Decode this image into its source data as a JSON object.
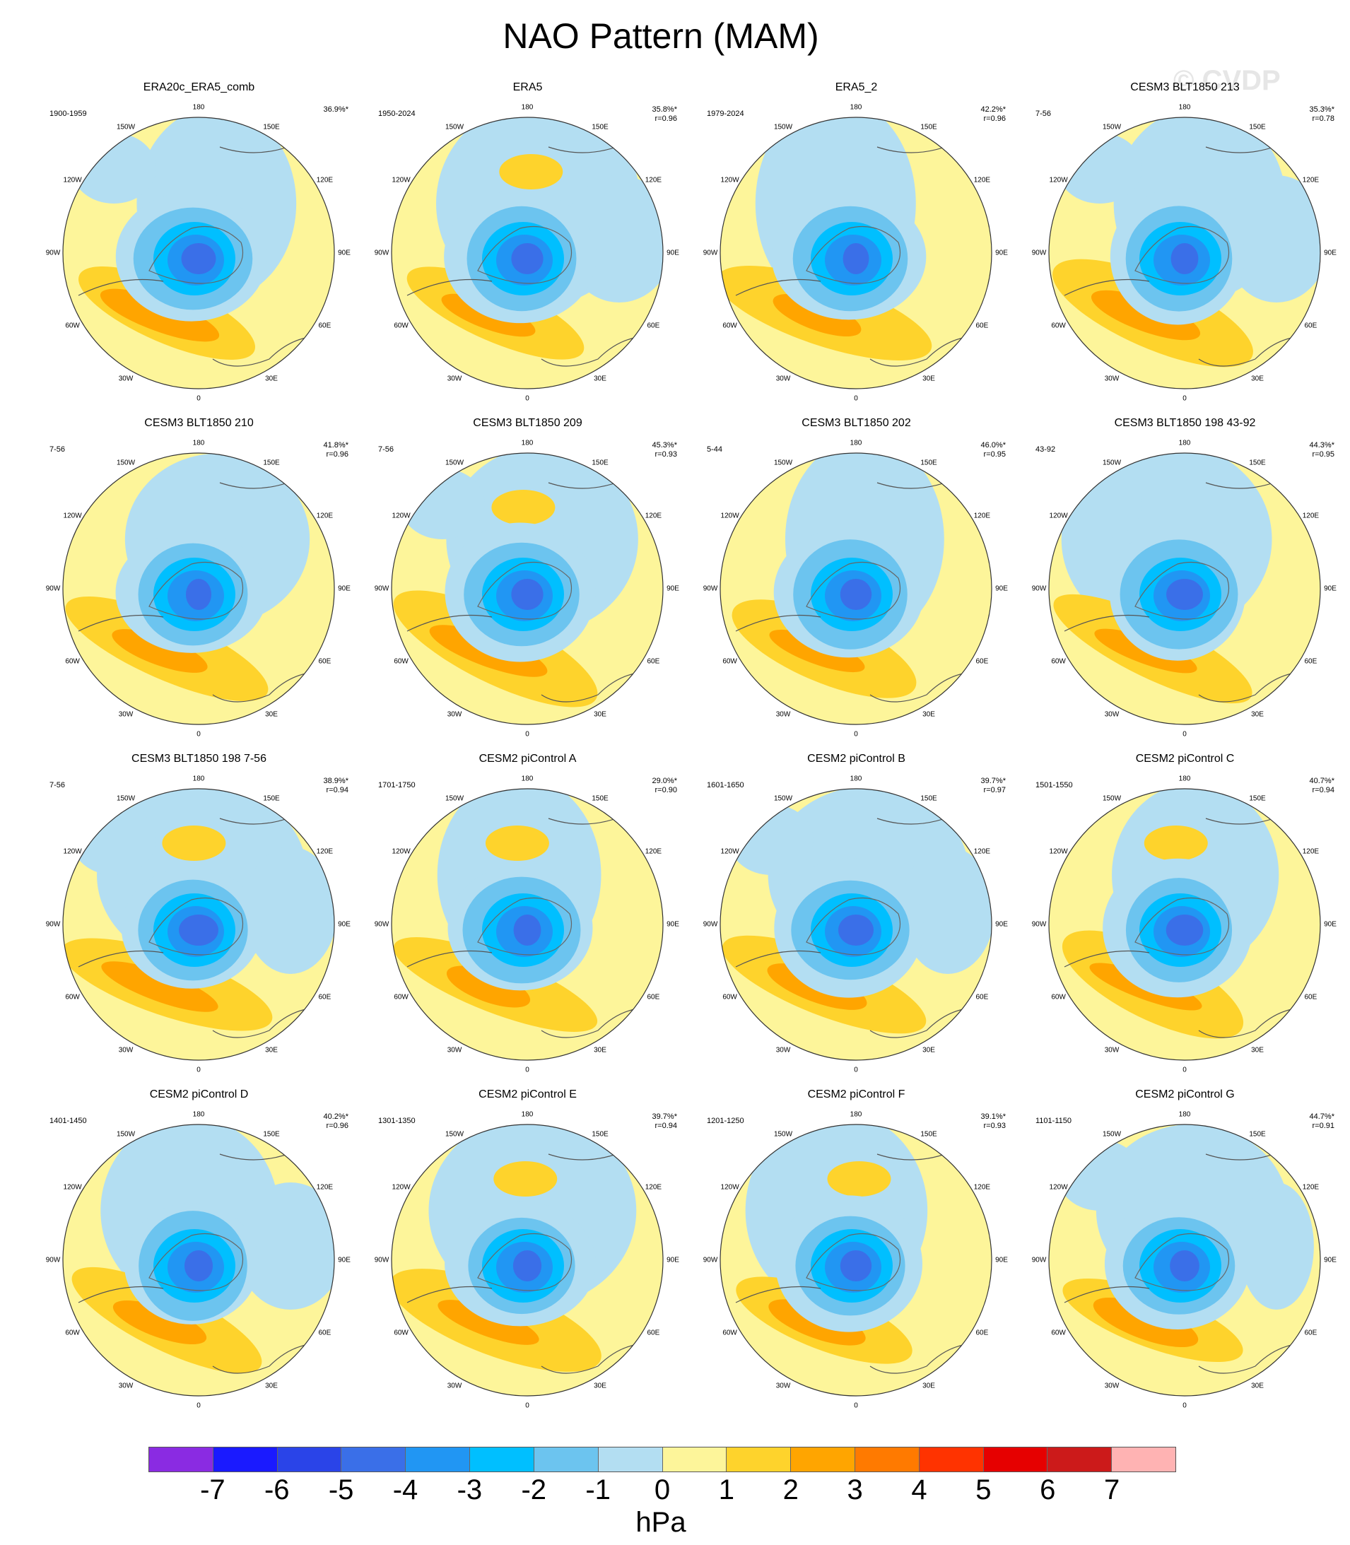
{
  "title": "NAO Pattern (MAM)",
  "watermark": "© CVDP",
  "lon_labels": [
    "180",
    "150E",
    "120E",
    "90E",
    "60E",
    "30E",
    "0",
    "30W",
    "60W",
    "90W",
    "120W",
    "150W"
  ],
  "panels": [
    {
      "title": "ERA20c_ERA5_comb",
      "period": "1900-1959",
      "pct": "36.9%*",
      "r": ""
    },
    {
      "title": "ERA5",
      "period": "1950-2024",
      "pct": "35.8%*",
      "r": "r=0.96"
    },
    {
      "title": "ERA5_2",
      "period": "1979-2024",
      "pct": "42.2%*",
      "r": "r=0.96"
    },
    {
      "title": "CESM3 BLT1850 213",
      "period": "7-56",
      "pct": "35.3%*",
      "r": "r=0.78"
    },
    {
      "title": "CESM3 BLT1850 210",
      "period": "7-56",
      "pct": "41.8%*",
      "r": "r=0.96"
    },
    {
      "title": "CESM3 BLT1850 209",
      "period": "7-56",
      "pct": "45.3%*",
      "r": "r=0.93"
    },
    {
      "title": "CESM3 BLT1850 202",
      "period": "5-44",
      "pct": "46.0%*",
      "r": "r=0.95"
    },
    {
      "title": "CESM3 BLT1850 198 43-92",
      "period": "43-92",
      "pct": "44.3%*",
      "r": "r=0.95"
    },
    {
      "title": "CESM3 BLT1850 198 7-56",
      "period": "7-56",
      "pct": "38.9%*",
      "r": "r=0.94"
    },
    {
      "title": "CESM2 piControl A",
      "period": "1701-1750",
      "pct": "29.0%*",
      "r": "r=0.90"
    },
    {
      "title": "CESM2 piControl B",
      "period": "1601-1650",
      "pct": "39.7%*",
      "r": "r=0.97"
    },
    {
      "title": "CESM2 piControl C",
      "period": "1501-1550",
      "pct": "40.7%*",
      "r": "r=0.94"
    },
    {
      "title": "CESM2 piControl D",
      "period": "1401-1450",
      "pct": "40.2%*",
      "r": "r=0.96"
    },
    {
      "title": "CESM2 piControl E",
      "period": "1301-1350",
      "pct": "39.7%*",
      "r": "r=0.94"
    },
    {
      "title": "CESM2 piControl F",
      "period": "1201-1250",
      "pct": "39.1%*",
      "r": "r=0.93"
    },
    {
      "title": "CESM2 piControl G",
      "period": "1101-1150",
      "pct": "44.7%*",
      "r": "r=0.91"
    }
  ],
  "colorbar": {
    "colors": [
      "#8a2be2",
      "#1a1aff",
      "#2a44e8",
      "#3a6fe8",
      "#2196f3",
      "#00bfff",
      "#6cc4ef",
      "#b3def2",
      "#fdf59a",
      "#fed32c",
      "#ffa500",
      "#ff7a00",
      "#ff3300",
      "#e60000",
      "#cc1a1a",
      "#ffb3b3"
    ],
    "labels": [
      "-7",
      "-6",
      "-5",
      "-4",
      "-3",
      "-2",
      "-1",
      "0",
      "1",
      "2",
      "3",
      "4",
      "5",
      "6",
      "7"
    ],
    "units": "hPa"
  }
}
